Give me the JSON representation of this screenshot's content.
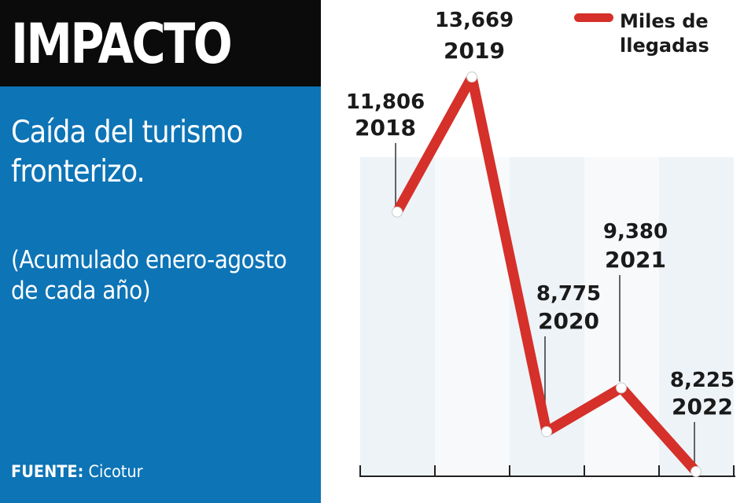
{
  "brand": {
    "title": "IMPACTO"
  },
  "headline": "Caída del turismo fronterizo.",
  "subheadline": "(Acumulado enero-agosto de cada año)",
  "source": {
    "label": "FUENTE:",
    "value": "Cicotur"
  },
  "legend": {
    "line1": "Miles de",
    "line2": "llegadas"
  },
  "colors": {
    "panel": "#0d74b6",
    "brand_bar": "#0b0b0b",
    "line": "#d5302a",
    "band_light": "#eef3f8",
    "band_lighter": "#f7f9fb"
  },
  "chart_data": {
    "type": "line",
    "series": [
      {
        "name": "Miles de llegadas",
        "points": [
          {
            "year": "2018",
            "value": 11806,
            "label": "11,806"
          },
          {
            "year": "2019",
            "value": 13669,
            "label": "13,669"
          },
          {
            "year": "2020",
            "value": 8775,
            "label": "8,775"
          },
          {
            "year": "2021",
            "value": 9380,
            "label": "9,380"
          },
          {
            "year": "2022",
            "value": 8225,
            "label": "8,225"
          }
        ]
      }
    ]
  }
}
